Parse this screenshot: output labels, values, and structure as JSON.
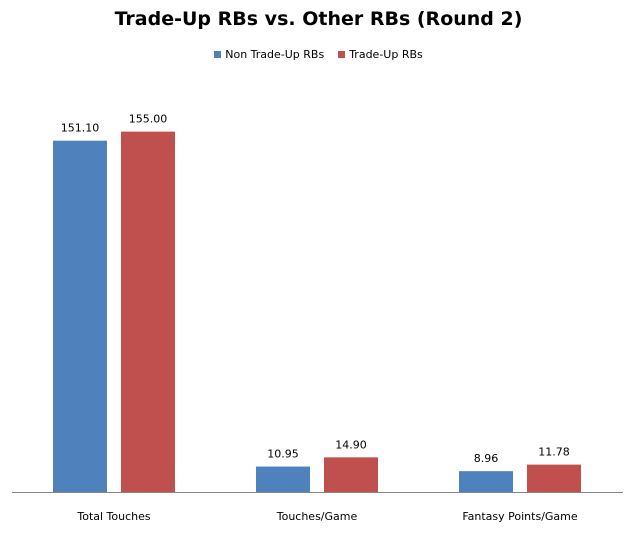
{
  "chart_data": {
    "type": "bar",
    "title": "Trade-Up RBs vs. Other RBs (Round 2)",
    "categories": [
      "Total Touches",
      "Touches/Game",
      "Fantasy Points/Game"
    ],
    "series": [
      {
        "name": "Non Trade-Up RBs",
        "values": [
          151.1,
          10.95,
          8.96
        ],
        "labels": [
          "151.10",
          "10.95",
          "8.96"
        ],
        "color": "#4F81BD"
      },
      {
        "name": "Trade-Up RBs",
        "values": [
          155.0,
          14.9,
          11.78
        ],
        "labels": [
          "155.00",
          "14.90",
          "11.78"
        ],
        "color": "#C0504D"
      }
    ],
    "legend_position": "top",
    "grid": false,
    "ylim": [
      0,
      160
    ]
  }
}
